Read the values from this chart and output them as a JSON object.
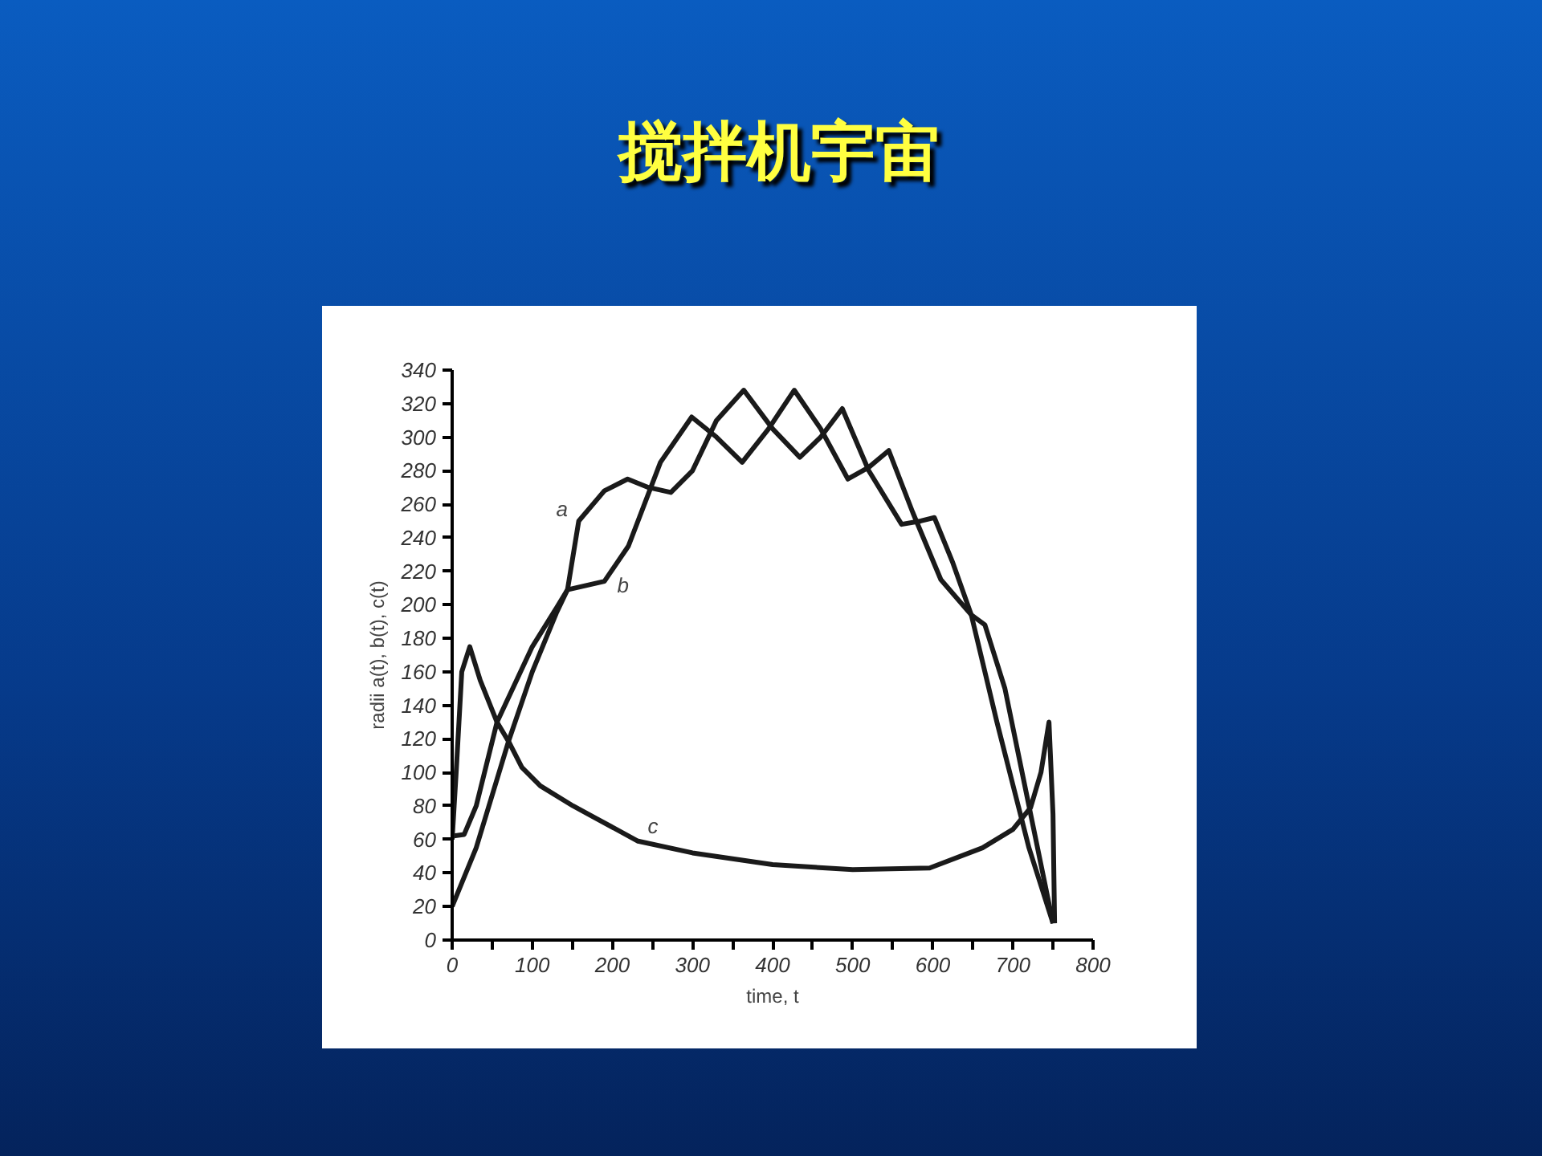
{
  "chart_data": {
    "type": "line",
    "title": "搅拌机宇宙",
    "xlabel": "time, t",
    "ylabel": "radii a(t), b(t), c(t)",
    "xlim": [
      0,
      800
    ],
    "ylim": [
      0,
      340
    ],
    "xticks": [
      0,
      {
        "value": 50,
        "label": null
      },
      100,
      {
        "value": 150,
        "label": null
      },
      200,
      {
        "value": 250,
        "label": null
      },
      300,
      {
        "value": 350,
        "label": null
      },
      400,
      {
        "value": 450,
        "label": null
      },
      500,
      {
        "value": 550,
        "label": null
      },
      600,
      {
        "value": 650,
        "label": null
      },
      700,
      {
        "value": 750,
        "label": null
      },
      800
    ],
    "yticks": [
      0,
      20,
      40,
      60,
      80,
      100,
      120,
      140,
      160,
      180,
      200,
      220,
      240,
      260,
      280,
      300,
      320,
      340
    ],
    "grid": false,
    "marker": "none",
    "line_style": "solid",
    "series": [
      {
        "name": "a",
        "color": "#1a1a1a",
        "x": [
          0,
          30,
          70,
          100,
          130,
          144,
          158,
          190,
          219,
          245,
          273,
          300,
          330,
          364,
          400,
          434,
          460,
          487,
          520,
          561,
          585,
          602,
          625,
          648,
          680,
          720,
          750
        ],
        "values": [
          20,
          55,
          118,
          160,
          195,
          209,
          250,
          268,
          275,
          270,
          267,
          280,
          310,
          328,
          305,
          288,
          300,
          317,
          280,
          248,
          250,
          252,
          225,
          194,
          130,
          55,
          10
        ]
      },
      {
        "name": "b",
        "color": "#1a1a1a",
        "x": [
          0,
          15,
          30,
          56,
          100,
          130,
          144,
          190,
          220,
          260,
          299,
          330,
          362,
          395,
          427,
          460,
          494,
          520,
          545,
          575,
          610,
          648,
          665,
          690,
          720,
          750
        ],
        "values": [
          62,
          63,
          80,
          130,
          175,
          198,
          209,
          214,
          235,
          285,
          312,
          300,
          285,
          305,
          328,
          305,
          275,
          282,
          292,
          255,
          215,
          194,
          188,
          150,
          80,
          10
        ]
      },
      {
        "name": "c",
        "color": "#1a1a1a",
        "x": [
          0,
          5,
          12,
          22,
          35,
          56,
          71,
          87,
          110,
          151,
          232,
          300,
          400,
          500,
          596,
          662,
          700,
          722,
          735,
          745,
          750,
          752
        ],
        "values": [
          60,
          100,
          160,
          175,
          155,
          130,
          118,
          103,
          92,
          80,
          59,
          52,
          45,
          42,
          43,
          55,
          66,
          79,
          100,
          130,
          75,
          10
        ]
      }
    ]
  }
}
